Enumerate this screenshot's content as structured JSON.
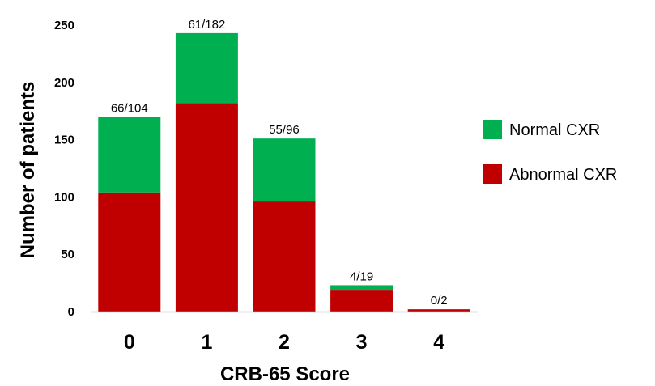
{
  "chart_data": {
    "type": "bar",
    "stacked": true,
    "title": "",
    "xlabel": "CRB-65 Score",
    "ylabel": "Number of patients",
    "categories": [
      "0",
      "1",
      "2",
      "3",
      "4"
    ],
    "ylim": [
      0,
      250
    ],
    "yticks": [
      "0",
      "50",
      "100",
      "150",
      "200",
      "250"
    ],
    "series": [
      {
        "name": "Abnormal CXR",
        "color": "#c00000",
        "values": [
          104,
          182,
          96,
          19,
          2
        ]
      },
      {
        "name": "Normal CXR",
        "color": "#00b050",
        "values": [
          66,
          61,
          55,
          4,
          0
        ]
      }
    ],
    "bar_labels": [
      "66/104",
      "61/182",
      "55/96",
      "4/19",
      "0/2"
    ],
    "legend": {
      "placement": "right",
      "items": [
        {
          "name": "Normal CXR",
          "color": "#00b050"
        },
        {
          "name": "Abnormal CXR",
          "color": "#c00000"
        }
      ]
    },
    "grid": false
  }
}
